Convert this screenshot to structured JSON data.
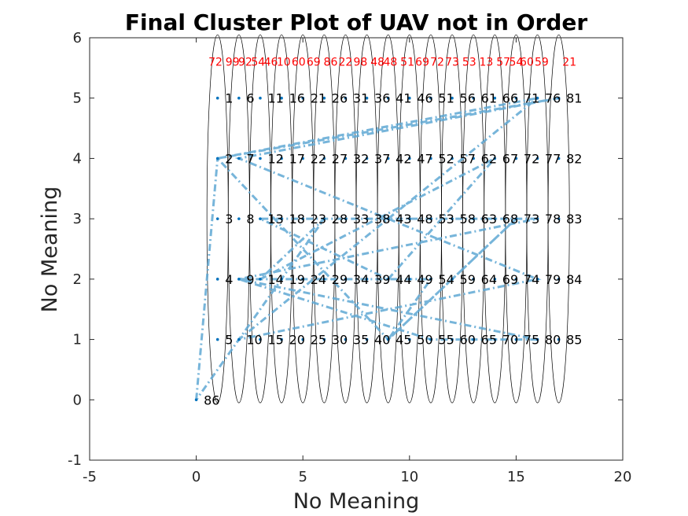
{
  "chart_data": {
    "type": "scatter",
    "title": "Final Cluster Plot of UAV not in Order",
    "xlabel": "No Meaning",
    "ylabel": "No Meaning",
    "xlim": [
      -5,
      20
    ],
    "ylim": [
      -1,
      6
    ],
    "xticks": [
      "-5",
      "0",
      "5",
      "10",
      "15",
      "20"
    ],
    "yticks": [
      "-1",
      "0",
      "1",
      "2",
      "3",
      "4",
      "5",
      "6"
    ],
    "grid": false,
    "box": true,
    "colors": {
      "points": "#0072bd",
      "path": "#5fa8d3",
      "ellipse": "#000000",
      "cluster_text": "#ff0000"
    },
    "grid_points": {
      "x_start": 1,
      "x_step": 1,
      "columns": 17,
      "y_values": [
        5,
        4,
        3,
        2,
        1
      ],
      "label_offset_x": 0.35
    },
    "points": [
      {
        "id": "1",
        "x": 1,
        "y": 5
      },
      {
        "id": "2",
        "x": 1,
        "y": 4
      },
      {
        "id": "3",
        "x": 1,
        "y": 3
      },
      {
        "id": "4",
        "x": 1,
        "y": 2
      },
      {
        "id": "5",
        "x": 1,
        "y": 1
      },
      {
        "id": "6",
        "x": 2,
        "y": 5
      },
      {
        "id": "7",
        "x": 2,
        "y": 4
      },
      {
        "id": "8",
        "x": 2,
        "y": 3
      },
      {
        "id": "9",
        "x": 2,
        "y": 2
      },
      {
        "id": "10",
        "x": 2,
        "y": 1
      },
      {
        "id": "11",
        "x": 3,
        "y": 5
      },
      {
        "id": "12",
        "x": 3,
        "y": 4
      },
      {
        "id": "13",
        "x": 3,
        "y": 3
      },
      {
        "id": "14",
        "x": 3,
        "y": 2
      },
      {
        "id": "15",
        "x": 3,
        "y": 1
      },
      {
        "id": "16",
        "x": 4,
        "y": 5
      },
      {
        "id": "17",
        "x": 4,
        "y": 4
      },
      {
        "id": "18",
        "x": 4,
        "y": 3
      },
      {
        "id": "19",
        "x": 4,
        "y": 2
      },
      {
        "id": "20",
        "x": 4,
        "y": 1
      },
      {
        "id": "21",
        "x": 5,
        "y": 5
      },
      {
        "id": "22",
        "x": 5,
        "y": 4
      },
      {
        "id": "23",
        "x": 5,
        "y": 3
      },
      {
        "id": "24",
        "x": 5,
        "y": 2
      },
      {
        "id": "25",
        "x": 5,
        "y": 1
      },
      {
        "id": "26",
        "x": 6,
        "y": 5
      },
      {
        "id": "27",
        "x": 6,
        "y": 4
      },
      {
        "id": "28",
        "x": 6,
        "y": 3
      },
      {
        "id": "29",
        "x": 6,
        "y": 2
      },
      {
        "id": "30",
        "x": 6,
        "y": 1
      },
      {
        "id": "31",
        "x": 7,
        "y": 5
      },
      {
        "id": "32",
        "x": 7,
        "y": 4
      },
      {
        "id": "33",
        "x": 7,
        "y": 3
      },
      {
        "id": "34",
        "x": 7,
        "y": 2
      },
      {
        "id": "35",
        "x": 7,
        "y": 1
      },
      {
        "id": "36",
        "x": 8,
        "y": 5
      },
      {
        "id": "37",
        "x": 8,
        "y": 4
      },
      {
        "id": "38",
        "x": 8,
        "y": 3
      },
      {
        "id": "39",
        "x": 8,
        "y": 2
      },
      {
        "id": "40",
        "x": 8,
        "y": 1
      },
      {
        "id": "41",
        "x": 9,
        "y": 5
      },
      {
        "id": "42",
        "x": 9,
        "y": 4
      },
      {
        "id": "43",
        "x": 9,
        "y": 3
      },
      {
        "id": "44",
        "x": 9,
        "y": 2
      },
      {
        "id": "45",
        "x": 9,
        "y": 1
      },
      {
        "id": "46",
        "x": 10,
        "y": 5
      },
      {
        "id": "47",
        "x": 10,
        "y": 4
      },
      {
        "id": "48",
        "x": 10,
        "y": 3
      },
      {
        "id": "49",
        "x": 10,
        "y": 2
      },
      {
        "id": "50",
        "x": 10,
        "y": 1
      },
      {
        "id": "51",
        "x": 11,
        "y": 5
      },
      {
        "id": "52",
        "x": 11,
        "y": 4
      },
      {
        "id": "53",
        "x": 11,
        "y": 3
      },
      {
        "id": "54",
        "x": 11,
        "y": 2
      },
      {
        "id": "55",
        "x": 11,
        "y": 1
      },
      {
        "id": "56",
        "x": 12,
        "y": 5
      },
      {
        "id": "57",
        "x": 12,
        "y": 4
      },
      {
        "id": "58",
        "x": 12,
        "y": 3
      },
      {
        "id": "59",
        "x": 12,
        "y": 2
      },
      {
        "id": "60",
        "x": 12,
        "y": 1
      },
      {
        "id": "61",
        "x": 13,
        "y": 5
      },
      {
        "id": "62",
        "x": 13,
        "y": 4
      },
      {
        "id": "63",
        "x": 13,
        "y": 3
      },
      {
        "id": "64",
        "x": 13,
        "y": 2
      },
      {
        "id": "65",
        "x": 13,
        "y": 1
      },
      {
        "id": "66",
        "x": 14,
        "y": 5
      },
      {
        "id": "67",
        "x": 14,
        "y": 4
      },
      {
        "id": "68",
        "x": 14,
        "y": 3
      },
      {
        "id": "69",
        "x": 14,
        "y": 2
      },
      {
        "id": "70",
        "x": 14,
        "y": 1
      },
      {
        "id": "71",
        "x": 15,
        "y": 5
      },
      {
        "id": "72",
        "x": 15,
        "y": 4
      },
      {
        "id": "73",
        "x": 15,
        "y": 3
      },
      {
        "id": "74",
        "x": 15,
        "y": 2
      },
      {
        "id": "75",
        "x": 15,
        "y": 1
      },
      {
        "id": "76",
        "x": 16,
        "y": 5
      },
      {
        "id": "77",
        "x": 16,
        "y": 4
      },
      {
        "id": "78",
        "x": 16,
        "y": 3
      },
      {
        "id": "79",
        "x": 16,
        "y": 2
      },
      {
        "id": "80",
        "x": 16,
        "y": 1
      },
      {
        "id": "81",
        "x": 17,
        "y": 5
      },
      {
        "id": "82",
        "x": 17,
        "y": 4
      },
      {
        "id": "83",
        "x": 17,
        "y": 3
      },
      {
        "id": "84",
        "x": 17,
        "y": 2
      },
      {
        "id": "85",
        "x": 17,
        "y": 1
      },
      {
        "id": "86",
        "x": 0,
        "y": 0
      }
    ],
    "path_order": [
      "86",
      "2",
      "81",
      "7",
      "79",
      "10",
      "76",
      "2",
      "45",
      "73",
      "45",
      "54",
      "9",
      "80",
      "55",
      "9",
      "78",
      "13",
      "44",
      "67",
      "14",
      "28",
      "86"
    ],
    "clusters": {
      "ellipse_centers_x": [
        1,
        2,
        3,
        4,
        5,
        6,
        7,
        8,
        9,
        10,
        11,
        12,
        13,
        14,
        15,
        16,
        17
      ],
      "ellipse_center_y": 3,
      "ellipse_rx": 0.5,
      "ellipse_ry": 3.05,
      "labels": [
        {
          "text": "72",
          "x": 0.9
        },
        {
          "text": "99",
          "x": 1.7
        },
        {
          "text": "92",
          "x": 2.3
        },
        {
          "text": "54",
          "x": 2.9
        },
        {
          "text": "46",
          "x": 3.5
        },
        {
          "text": "10",
          "x": 4.1
        },
        {
          "text": "60",
          "x": 4.8
        },
        {
          "text": "69",
          "x": 5.5
        },
        {
          "text": "86",
          "x": 6.3
        },
        {
          "text": "22",
          "x": 7.0
        },
        {
          "text": "98",
          "x": 7.7
        },
        {
          "text": "48",
          "x": 8.5
        },
        {
          "text": "48",
          "x": 9.1
        },
        {
          "text": "51",
          "x": 9.9
        },
        {
          "text": "69",
          "x": 10.6
        },
        {
          "text": "72",
          "x": 11.3
        },
        {
          "text": "73",
          "x": 12.0
        },
        {
          "text": "53",
          "x": 12.8
        },
        {
          "text": "13",
          "x": 13.6
        },
        {
          "text": "57",
          "x": 14.4
        },
        {
          "text": "54",
          "x": 15.0
        },
        {
          "text": "60",
          "x": 15.5
        },
        {
          "text": "59",
          "x": 16.2
        },
        {
          "text": "21",
          "x": 17.5
        }
      ],
      "labels_y": 5.6
    }
  }
}
